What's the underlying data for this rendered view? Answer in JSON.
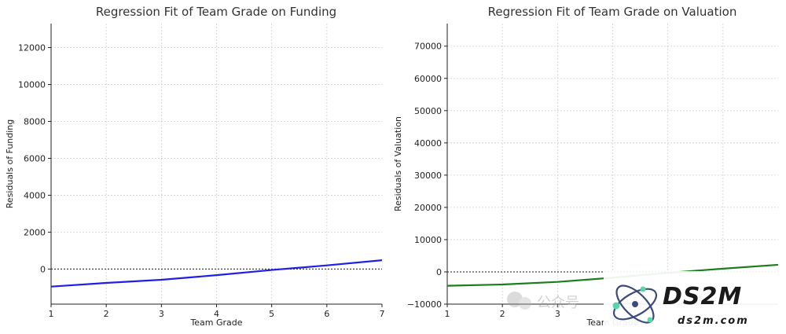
{
  "chart_data": [
    {
      "type": "line",
      "title": "Regression Fit of Team Grade on Funding",
      "xlabel": "Team Grade",
      "ylabel": "Residuals of Funding",
      "xlim": [
        1,
        7
      ],
      "ylim": [
        -1900,
        13300
      ],
      "xticks": [
        1,
        2,
        3,
        4,
        5,
        6,
        7
      ],
      "yticks": [
        0,
        2000,
        4000,
        6000,
        8000,
        10000,
        12000
      ],
      "grid": true,
      "reference_line_y": 0,
      "series": [
        {
          "color": "#1f1fe6",
          "x": [
            1,
            2,
            3,
            4,
            5,
            6,
            7
          ],
          "y": [
            -950,
            -750,
            -580,
            -330,
            -50,
            200,
            480
          ]
        }
      ]
    },
    {
      "type": "line",
      "title": "Regression Fit of Team Grade on Valuation",
      "xlabel": "Team Grade",
      "ylabel": "Residuals of Valuation",
      "xlim": [
        1,
        7
      ],
      "ylim": [
        -10000,
        77000
      ],
      "xticks": [
        1,
        2,
        3
      ],
      "yticks": [
        -10000,
        0,
        10000,
        20000,
        30000,
        40000,
        50000,
        60000,
        70000
      ],
      "grid": true,
      "reference_line_y": 0,
      "series": [
        {
          "color": "#1a7f1a",
          "x": [
            1,
            2,
            3,
            4,
            5,
            6,
            7
          ],
          "y": [
            -4300,
            -3900,
            -3100,
            -1800,
            -300,
            1000,
            2200
          ]
        }
      ]
    }
  ],
  "watermark": {
    "brand": "DS2M",
    "site": "ds2m.com",
    "faint_text": "公众号",
    "colors": {
      "ring": "#3a4a7a",
      "dot": "#59d6a8",
      "text": "#1a1a1a"
    }
  }
}
